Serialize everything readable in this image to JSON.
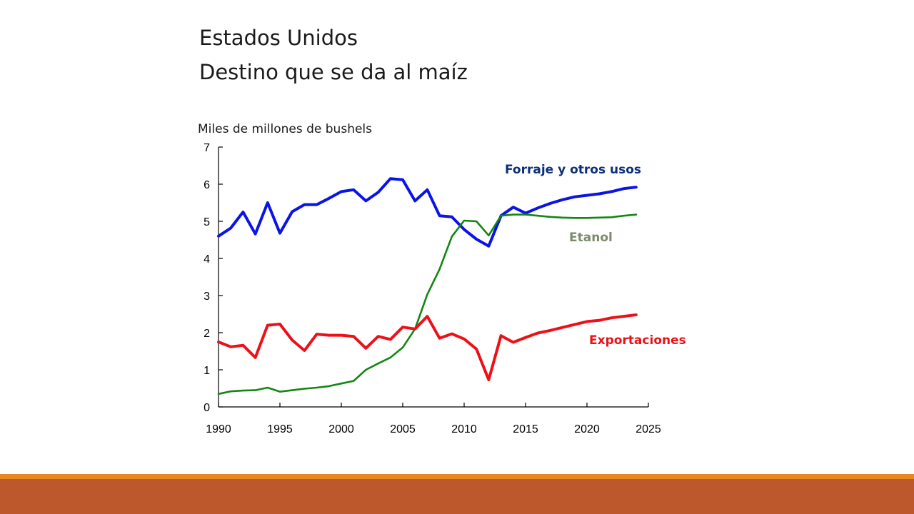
{
  "slide": {
    "title_line1": "Estados Unidos",
    "title_line2": "Destino que se da al maíz",
    "unit_label": "Miles de millones de bushels"
  },
  "colors": {
    "forraje": "#0a14e6",
    "etanol": "#138613",
    "exportaciones": "#ec1118",
    "forraje_label": "#0b2f7a",
    "etanol_label": "#7b8a6b",
    "exportaciones_label": "#ec1118",
    "footer_orange": "#e8891f",
    "footer_brown": "#bd582c"
  },
  "chart_data": {
    "type": "line",
    "xlim": [
      1990,
      2025
    ],
    "ylim": [
      0,
      7
    ],
    "x_ticks": [
      "1990",
      "1995",
      "2000",
      "2005",
      "2010",
      "2015",
      "2020",
      "2025"
    ],
    "y_ticks": [
      "0",
      "1",
      "2",
      "3",
      "4",
      "5",
      "6",
      "7"
    ],
    "grid": false,
    "series": [
      {
        "name": "Forraje y otros usos",
        "key": "forraje",
        "x": [
          1990,
          1991,
          1992,
          1993,
          1994,
          1995,
          1996,
          1997,
          1998,
          1999,
          2000,
          2001,
          2002,
          2003,
          2004,
          2005,
          2006,
          2007,
          2008,
          2009,
          2010,
          2011,
          2012,
          2013,
          2014,
          2015,
          2016,
          2017,
          2018,
          2019,
          2020,
          2021,
          2022,
          2023,
          2024
        ],
        "values": [
          4.6,
          4.82,
          5.25,
          4.66,
          5.5,
          4.68,
          5.26,
          5.45,
          5.45,
          5.62,
          5.8,
          5.85,
          5.55,
          5.78,
          6.15,
          6.12,
          5.55,
          5.85,
          5.15,
          5.12,
          4.78,
          4.52,
          4.33,
          5.15,
          5.38,
          5.22,
          5.36,
          5.48,
          5.58,
          5.66,
          5.7,
          5.74,
          5.8,
          5.88,
          5.92
        ]
      },
      {
        "name": "Etanol",
        "key": "etanol",
        "x": [
          1990,
          1991,
          1992,
          1993,
          1994,
          1995,
          1996,
          1997,
          1998,
          1999,
          2000,
          2001,
          2002,
          2003,
          2004,
          2005,
          2006,
          2007,
          2008,
          2009,
          2010,
          2011,
          2012,
          2013,
          2014,
          2015,
          2016,
          2017,
          2018,
          2019,
          2020,
          2021,
          2022,
          2023,
          2024
        ],
        "values": [
          0.35,
          0.42,
          0.44,
          0.45,
          0.52,
          0.41,
          0.45,
          0.49,
          0.52,
          0.56,
          0.63,
          0.7,
          1.0,
          1.17,
          1.33,
          1.6,
          2.1,
          3.03,
          3.71,
          4.59,
          5.02,
          5.0,
          4.62,
          5.15,
          5.18,
          5.18,
          5.15,
          5.12,
          5.1,
          5.09,
          5.09,
          5.1,
          5.11,
          5.15,
          5.18
        ]
      },
      {
        "name": "Exportaciones",
        "key": "exportaciones",
        "x": [
          1990,
          1991,
          1992,
          1993,
          1994,
          1995,
          1996,
          1997,
          1998,
          1999,
          2000,
          2001,
          2002,
          2003,
          2004,
          2005,
          2006,
          2007,
          2008,
          2009,
          2010,
          2011,
          2012,
          2013,
          2014,
          2015,
          2016,
          2017,
          2018,
          2019,
          2020,
          2021,
          2022,
          2023,
          2024
        ],
        "values": [
          1.75,
          1.62,
          1.66,
          1.33,
          2.2,
          2.23,
          1.8,
          1.52,
          1.96,
          1.93,
          1.93,
          1.9,
          1.58,
          1.9,
          1.82,
          2.15,
          2.1,
          2.44,
          1.85,
          1.97,
          1.83,
          1.56,
          0.73,
          1.92,
          1.74,
          1.87,
          1.99,
          2.06,
          2.14,
          2.22,
          2.3,
          2.33,
          2.4,
          2.44,
          2.48
        ]
      }
    ],
    "annotations": [
      "Forraje y otros usos",
      "Etanol",
      "Exportaciones"
    ]
  }
}
